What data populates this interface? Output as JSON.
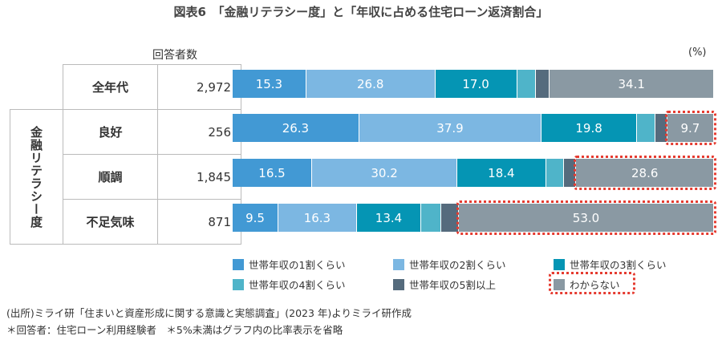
{
  "title": "図表6　「金融リテラシー度」と「年収に占める住宅ローン返済割合」",
  "chart_data": {
    "type": "bar",
    "stacked": true,
    "orientation": "horizontal",
    "unit": "(%)",
    "respondents_header": "回答者数",
    "group_label": "金融リテラシー度",
    "categories": [
      "全年代",
      "良好",
      "順調",
      "不足気味"
    ],
    "respondents": [
      "2,972",
      "256",
      "1,845",
      "871"
    ],
    "series": [
      {
        "name": "世帯年収の1割くらい",
        "color": "#4299d4",
        "values": [
          15.3,
          26.3,
          16.5,
          9.5
        ]
      },
      {
        "name": "世帯年収の2割くらい",
        "color": "#7cb7e2",
        "values": [
          26.8,
          37.9,
          30.2,
          16.3
        ]
      },
      {
        "name": "世帯年収の3割くらい",
        "color": "#0595b4",
        "values": [
          17.0,
          19.8,
          18.4,
          13.4
        ]
      },
      {
        "name": "世帯年収の4割くらい",
        "color": "#4fb4c9",
        "values": [
          3.9,
          3.9,
          3.7,
          4.2
        ]
      },
      {
        "name": "世帯年収の5割以上",
        "color": "#556b7d",
        "values": [
          2.9,
          2.4,
          2.6,
          3.6
        ]
      },
      {
        "name": "わからない",
        "color": "#8a99a3",
        "values": [
          34.1,
          9.7,
          28.6,
          53.0
        ]
      }
    ],
    "label_threshold": 5,
    "highlight_series": "わからない",
    "highlight_rows": [
      1,
      2,
      3
    ],
    "highlight_color": "#e53b30"
  },
  "notes": [
    "(出所)ミライ研「住まいと資産形成に関する意識と実態調査」(2023 年)よりミライ研作成",
    "＊回答者：住宅ローン利用経験者　＊5%未満はグラフ内の比率表示を省略"
  ]
}
